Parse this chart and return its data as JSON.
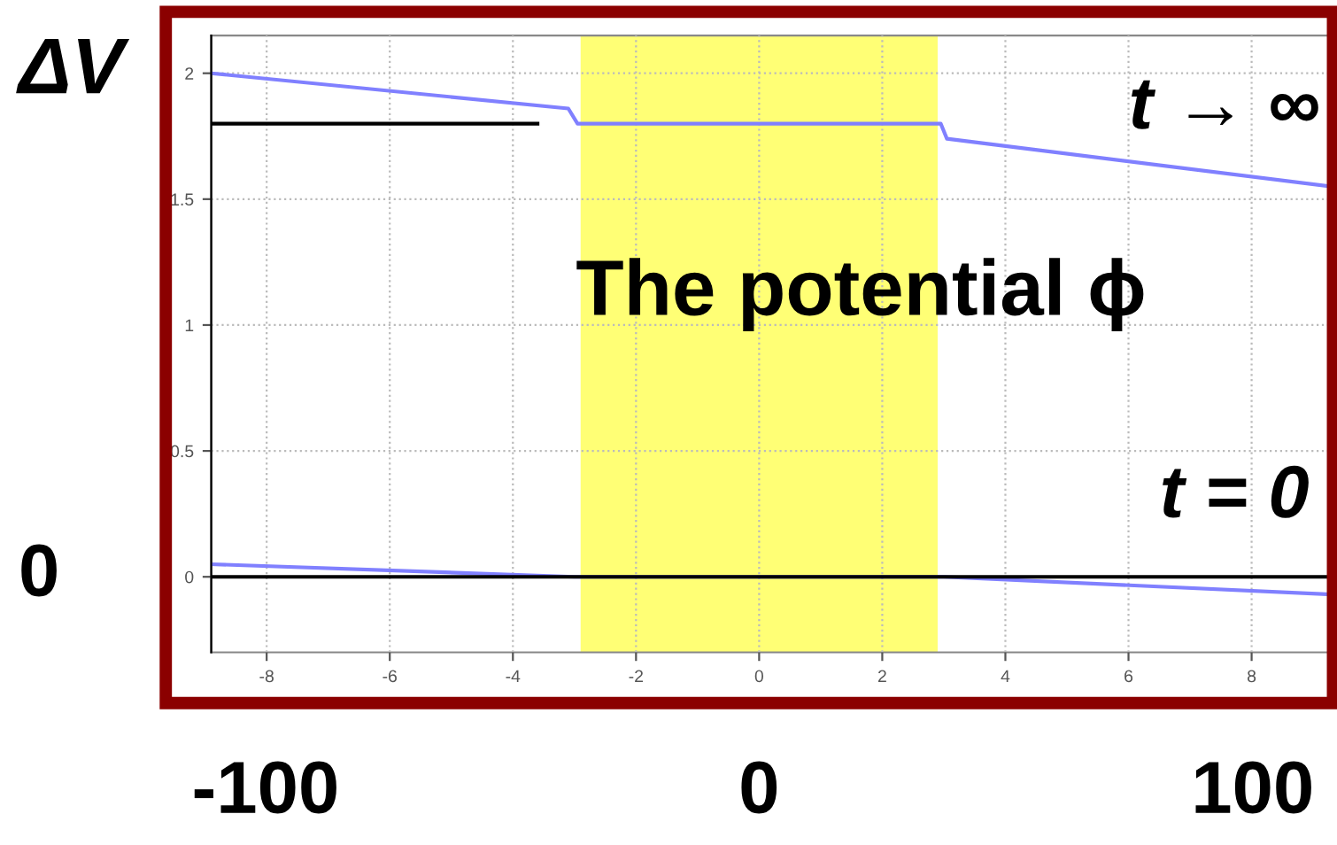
{
  "chart_data": {
    "type": "line",
    "ylabel": "ΔV",
    "series": [
      {
        "color": "#8080ff",
        "x": [
          -8.9,
          -3.1,
          -2.95,
          2.95,
          3.05,
          9.3
        ],
        "values": [
          2.0,
          1.86,
          1.8,
          1.8,
          1.74,
          1.55
        ]
      },
      {
        "color": "#000000",
        "x": [
          -8.9,
          -3.6
        ],
        "values": [
          1.8,
          1.8
        ]
      },
      {
        "color": "#8080ff",
        "x": [
          -8.9,
          -3.0,
          3.0,
          9.3
        ],
        "values": [
          0.05,
          0.0,
          0.0,
          -0.07
        ]
      },
      {
        "color": "#000000",
        "x": [
          -8.9,
          9.3
        ],
        "values": [
          0.0,
          0.0
        ]
      }
    ],
    "xlim": [
      -8.9,
      9.3
    ],
    "xticks": [
      -8,
      -6,
      -4,
      -2,
      0,
      2,
      4,
      6,
      8
    ],
    "ylim": [
      -0.3,
      2.15
    ],
    "yticks": [
      0,
      0.5,
      1,
      1.5,
      2
    ],
    "x2lim": [
      -111,
      116
    ],
    "x2ticks": [
      -100,
      0,
      100
    ],
    "bands": [
      {
        "axis": "x",
        "from": -2.9,
        "to": 2.9,
        "color": "#ffff66"
      }
    ],
    "annotations": [
      "t → ∞",
      "The potential ϕ",
      "t = 0",
      "0"
    ],
    "grid": true,
    "marker": "none",
    "line_style": "solid"
  }
}
